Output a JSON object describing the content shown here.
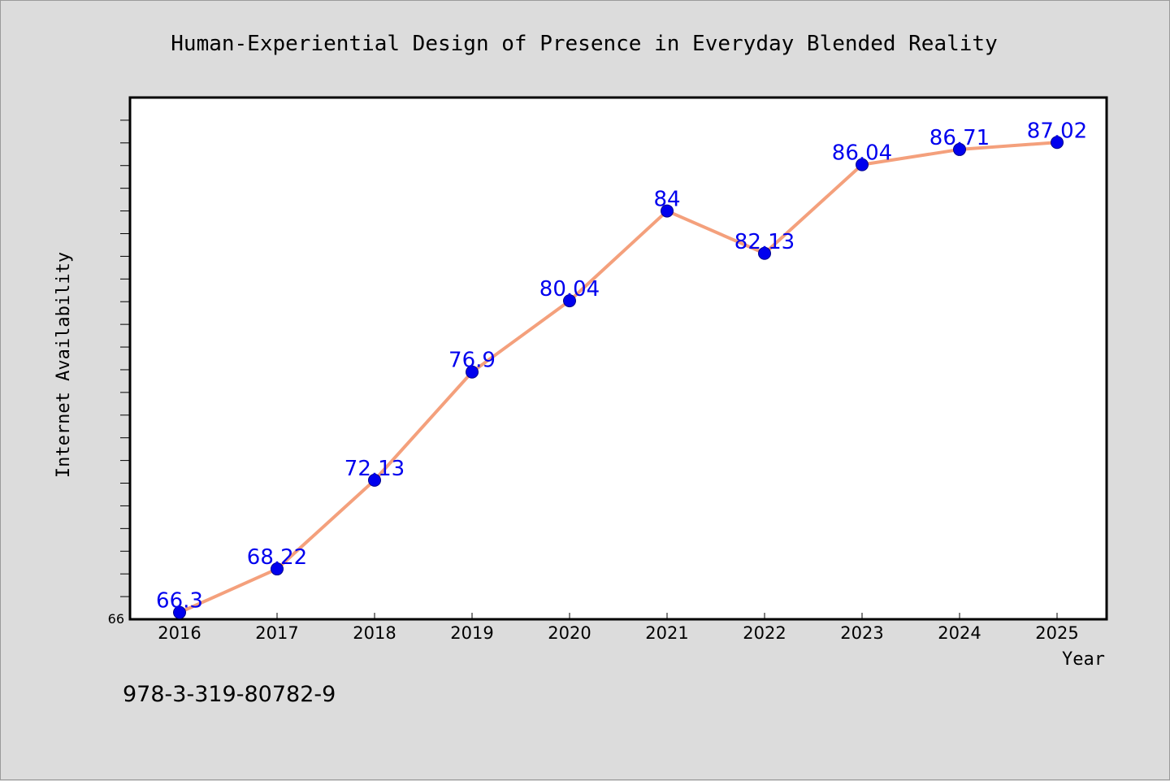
{
  "chart_data": {
    "type": "line",
    "title": "Human-Experiential Design of Presence in Everyday Blended Reality",
    "xlabel": "Year",
    "ylabel": "Internet Availability",
    "categories": [
      "2016",
      "2017",
      "2018",
      "2019",
      "2020",
      "2021",
      "2022",
      "2023",
      "2024",
      "2025"
    ],
    "series": [
      {
        "values": [
          66.3,
          68.22,
          72.13,
          76.9,
          80.04,
          84,
          82.13,
          86.04,
          86.71,
          87.02
        ],
        "data_labels": [
          "66.3",
          "68.22",
          "72.13",
          "76.9",
          "80.04",
          "84",
          "82.13",
          "86.04",
          "86.71",
          "87.02"
        ]
      }
    ],
    "y_min_label": "66",
    "ylim": [
      66,
      89
    ],
    "grid": false,
    "legend": "none",
    "line_color": "#f4a07c",
    "marker_color": "#0000ee",
    "label_color": "#0000ee",
    "plot_background": "#ffffff",
    "figure_background": "#dcdcdc"
  },
  "footer": {
    "isbn": "978-3-319-80782-9"
  }
}
